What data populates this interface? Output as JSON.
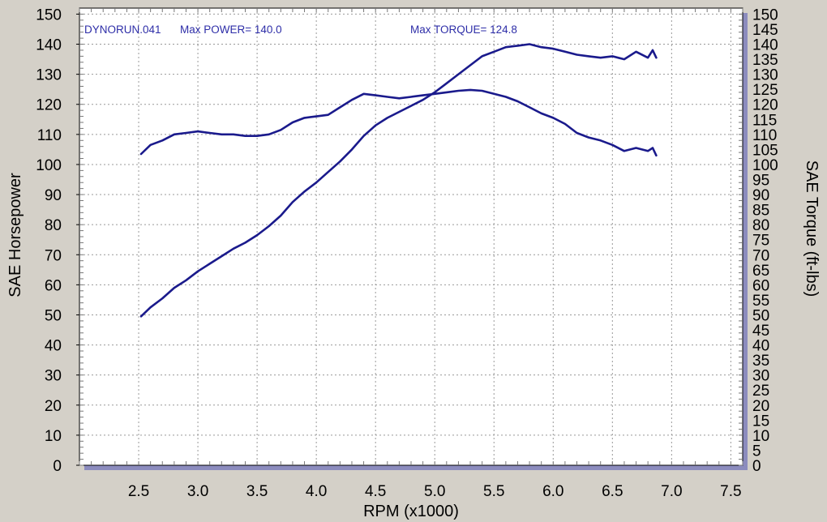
{
  "chart_data": {
    "type": "line",
    "annotations": {
      "run": "DYNORUN.041",
      "max_power": "Max POWER= 140.0",
      "max_torque": "Max TORQUE= 124.8"
    },
    "xlabel": "RPM (x1000)",
    "ylabel": "SAE Horsepower",
    "y2label": "SAE Torque (ft-lbs)",
    "xlim": [
      2.0,
      7.6
    ],
    "ylim": [
      0,
      152
    ],
    "xticks": [
      "2.5",
      "3.0",
      "3.5",
      "4.0",
      "4.5",
      "5.0",
      "5.5",
      "6.0",
      "6.5",
      "7.0",
      "7.5"
    ],
    "yticks": [
      "0",
      "10",
      "20",
      "30",
      "40",
      "50",
      "60",
      "70",
      "80",
      "90",
      "100",
      "110",
      "120",
      "130",
      "140",
      "150"
    ],
    "y2ticks": [
      "0",
      "5",
      "10",
      "15",
      "20",
      "25",
      "30",
      "35",
      "40",
      "45",
      "50",
      "55",
      "60",
      "65",
      "70",
      "75",
      "80",
      "85",
      "90",
      "95",
      "100",
      "105",
      "110",
      "115",
      "120",
      "125",
      "130",
      "135",
      "140",
      "145",
      "150"
    ],
    "grid": true,
    "line_color": "#1a1a8c",
    "plot_background": "#ffffff",
    "series": [
      {
        "axis": "left",
        "x": [
          2.52,
          2.6,
          2.7,
          2.8,
          2.9,
          3.0,
          3.1,
          3.2,
          3.3,
          3.4,
          3.5,
          3.6,
          3.7,
          3.8,
          3.9,
          4.0,
          4.1,
          4.2,
          4.3,
          4.4,
          4.5,
          4.6,
          4.7,
          4.8,
          4.9,
          5.0,
          5.1,
          5.2,
          5.3,
          5.4,
          5.5,
          5.6,
          5.7,
          5.8,
          5.9,
          6.0,
          6.1,
          6.2,
          6.3,
          6.4,
          6.5,
          6.6,
          6.7,
          6.8,
          6.84,
          6.87
        ],
        "y": [
          49.5,
          52.5,
          55.5,
          59.0,
          61.5,
          64.5,
          67.0,
          69.5,
          72.0,
          74.0,
          76.5,
          79.5,
          83.0,
          87.5,
          91.0,
          94.0,
          97.5,
          101.0,
          105.0,
          109.5,
          113.0,
          115.5,
          117.5,
          119.5,
          121.5,
          124.0,
          127.0,
          130.0,
          133.0,
          136.0,
          137.5,
          139.0,
          139.5,
          140.0,
          139.0,
          138.5,
          137.5,
          136.5,
          136.0,
          135.5,
          136.0,
          135.0,
          137.5,
          135.5,
          138.0,
          135.5
        ]
      },
      {
        "axis": "left",
        "x": [
          2.52,
          2.6,
          2.7,
          2.8,
          2.9,
          3.0,
          3.1,
          3.2,
          3.3,
          3.4,
          3.5,
          3.6,
          3.7,
          3.8,
          3.9,
          4.0,
          4.1,
          4.2,
          4.3,
          4.4,
          4.5,
          4.6,
          4.7,
          4.8,
          4.9,
          5.0,
          5.1,
          5.2,
          5.3,
          5.4,
          5.5,
          5.6,
          5.7,
          5.8,
          5.9,
          6.0,
          6.1,
          6.2,
          6.3,
          6.4,
          6.5,
          6.6,
          6.7,
          6.8,
          6.84,
          6.87
        ],
        "y": [
          103.5,
          106.5,
          108.0,
          110.0,
          110.5,
          111.0,
          110.5,
          110.0,
          110.0,
          109.5,
          109.5,
          110.0,
          111.5,
          114.0,
          115.5,
          116.0,
          116.5,
          119.0,
          121.5,
          123.5,
          123.0,
          122.5,
          122.0,
          122.5,
          123.0,
          123.5,
          124.0,
          124.5,
          124.8,
          124.5,
          123.5,
          122.5,
          121.0,
          119.0,
          117.0,
          115.5,
          113.5,
          110.5,
          109.0,
          108.0,
          106.5,
          104.5,
          105.5,
          104.5,
          105.5,
          103.0
        ]
      }
    ]
  }
}
